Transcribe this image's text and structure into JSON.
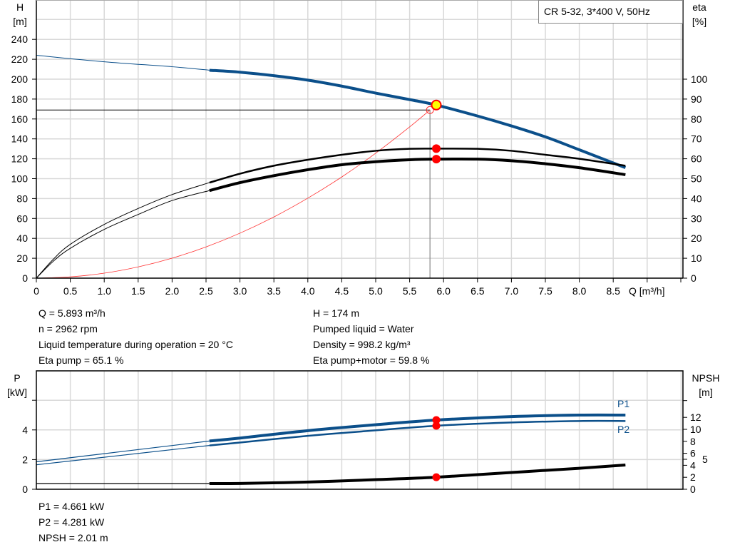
{
  "colors": {
    "head": "#0b4f8a",
    "eta": "#000000",
    "system": "#ff3030",
    "point": "#ff0000",
    "duty_point_fill": "#ffff00",
    "grid": "#d9d9d9",
    "power": "#0b4f8a",
    "npsh": "#000000"
  },
  "chart_data": [
    {
      "type": "line",
      "legend_box": "CR 5-32, 3*400 V, 50Hz",
      "xlabel": "Q [m³/h]",
      "ylabel_left": [
        "H",
        "[m]"
      ],
      "ylabel_right": [
        "eta",
        "[%]"
      ],
      "xlim": [
        0,
        9.6
      ],
      "ylim_left": [
        0,
        260
      ],
      "ylim_right": [
        0,
        130
      ],
      "xticks": [
        "0",
        "0.5",
        "1.0",
        "1.5",
        "2.0",
        "2.5",
        "3.0",
        "3.5",
        "4.0",
        "4.5",
        "5.0",
        "5.5",
        "6.0",
        "6.5",
        "7.0",
        "7.5",
        "8.0",
        "8.5"
      ],
      "yticks_left": [
        0,
        20,
        40,
        60,
        80,
        100,
        120,
        140,
        160,
        180,
        200,
        220,
        240
      ],
      "yticks_right": [
        0,
        10,
        20,
        30,
        40,
        50,
        60,
        70,
        80,
        90,
        100
      ],
      "grid": true,
      "series": [
        {
          "key": "head",
          "axis": "left",
          "thin": [
            [
              0,
              224
            ],
            [
              1.0,
              217.5
            ],
            [
              2.0,
              212.5
            ],
            [
              2.55,
              209
            ]
          ],
          "thick": [
            [
              2.55,
              209
            ],
            [
              3,
              207
            ],
            [
              3.5,
              203.5
            ],
            [
              4,
              199
            ],
            [
              4.5,
              193
            ],
            [
              5,
              186
            ],
            [
              5.5,
              179.5
            ],
            [
              5.893,
              174
            ],
            [
              6.5,
              163
            ],
            [
              7,
              153
            ],
            [
              7.5,
              142
            ],
            [
              8,
              129
            ],
            [
              8.68,
              111
            ]
          ]
        },
        {
          "key": "eta_pump",
          "axis": "right",
          "thin": [
            [
              0,
              0
            ],
            [
              0.25,
              9.5
            ],
            [
              0.5,
              17
            ],
            [
              1,
              27
            ],
            [
              1.5,
              35
            ],
            [
              2,
              42
            ],
            [
              2.55,
              48
            ]
          ],
          "thick": [
            [
              2.55,
              48
            ],
            [
              3,
              52.5
            ],
            [
              3.5,
              56.5
            ],
            [
              4,
              59.5
            ],
            [
              4.5,
              62
            ],
            [
              5,
              64
            ],
            [
              5.5,
              65
            ],
            [
              5.893,
              65.1
            ],
            [
              6.5,
              65
            ],
            [
              7,
              64
            ],
            [
              7.5,
              62
            ],
            [
              8,
              60
            ],
            [
              8.68,
              56.5
            ]
          ]
        },
        {
          "key": "eta_pump_motor",
          "axis": "right",
          "thin": [
            [
              0,
              0
            ],
            [
              0.25,
              8.5
            ],
            [
              0.5,
              15
            ],
            [
              1,
              24.5
            ],
            [
              1.5,
              32
            ],
            [
              2,
              39
            ],
            [
              2.55,
              44
            ]
          ],
          "thick": [
            [
              2.55,
              44
            ],
            [
              3,
              48
            ],
            [
              3.5,
              51.5
            ],
            [
              4,
              54.5
            ],
            [
              4.5,
              57
            ],
            [
              5,
              58.5
            ],
            [
              5.5,
              59.5
            ],
            [
              5.893,
              59.8
            ],
            [
              6.5,
              59.8
            ],
            [
              7,
              59
            ],
            [
              7.5,
              57.5
            ],
            [
              8,
              55.5
            ],
            [
              8.68,
              52
            ]
          ]
        },
        {
          "key": "system_curve",
          "axis": "left",
          "thin": [
            [
              0,
              0
            ],
            [
              0.5,
              1.3
            ],
            [
              1,
              5
            ],
            [
              1.5,
              11.3
            ],
            [
              2,
              20.1
            ],
            [
              2.5,
              31.4
            ],
            [
              3,
              45.2
            ],
            [
              3.5,
              61.5
            ],
            [
              4,
              80.4
            ],
            [
              4.5,
              101.7
            ],
            [
              5,
              125.6
            ],
            [
              5.5,
              152
            ],
            [
              5.8,
              169
            ]
          ]
        }
      ],
      "duty_point": {
        "q": 5.893,
        "h": 174
      },
      "requested_point": {
        "q": 5.8,
        "h": 169
      },
      "eta_points": [
        65.1,
        59.8
      ]
    },
    {
      "type": "line",
      "ylabel_left": [
        "P",
        "[kW]"
      ],
      "ylabel_right": [
        "NPSH",
        "[m]"
      ],
      "xlim": [
        0,
        9.6
      ],
      "ylim_left": [
        0,
        8
      ],
      "ylim_right": [
        0,
        19.8
      ],
      "yticks_left": [
        "0",
        "2",
        "4",
        ""
      ],
      "yticks_left_values": [
        0,
        2,
        4,
        6
      ],
      "yticks_right": [
        "0",
        "2",
        "4",
        "5",
        "6",
        "8",
        "10",
        "12",
        ""
      ],
      "yticks_right_values": [
        0,
        2,
        4,
        5,
        6,
        8,
        10,
        12,
        14.8
      ],
      "grid": true,
      "series": [
        {
          "key": "P1",
          "name": "P1",
          "axis": "left",
          "thin": [
            [
              0,
              1.85
            ],
            [
              2.55,
              3.25
            ]
          ],
          "thick": [
            [
              2.55,
              3.25
            ],
            [
              3,
              3.45
            ],
            [
              4,
              3.95
            ],
            [
              5,
              4.35
            ],
            [
              5.893,
              4.661
            ],
            [
              7,
              4.9
            ],
            [
              8,
              5.0
            ],
            [
              8.68,
              5.0
            ]
          ]
        },
        {
          "key": "P2",
          "name": "P2",
          "axis": "left",
          "thin": [
            [
              0,
              1.65
            ],
            [
              2.55,
              2.95
            ]
          ],
          "thick": [
            [
              2.55,
              2.95
            ],
            [
              3,
              3.15
            ],
            [
              4,
              3.6
            ],
            [
              5,
              3.97
            ],
            [
              5.893,
              4.281
            ],
            [
              7,
              4.5
            ],
            [
              8,
              4.6
            ],
            [
              8.68,
              4.6
            ]
          ]
        },
        {
          "key": "NPSH",
          "axis": "right",
          "thin": [
            [
              0,
              0.95
            ],
            [
              2.55,
              0.95
            ]
          ],
          "thick": [
            [
              2.55,
              0.95
            ],
            [
              3,
              0.97
            ],
            [
              4,
              1.2
            ],
            [
              5,
              1.6
            ],
            [
              5.893,
              2.01
            ],
            [
              7,
              2.8
            ],
            [
              8,
              3.5
            ],
            [
              8.68,
              4.05
            ]
          ]
        }
      ],
      "points": {
        "q": 5.893,
        "p1": 4.661,
        "p2": 4.281,
        "npsh": 2.01
      }
    }
  ],
  "info_left": [
    "Q = 5.893 m³/h",
    "n = 2962 rpm",
    "Liquid temperature during operation = 20 °C",
    "Eta pump = 65.1 %"
  ],
  "info_right": [
    "H = 174 m",
    "Pumped liquid = Water",
    "Density = 998.2 kg/m³",
    "Eta pump+motor = 59.8 %"
  ],
  "info_bottom": [
    "P1 = 4.661 kW",
    "P2 = 4.281 kW",
    "NPSH = 2.01 m"
  ]
}
